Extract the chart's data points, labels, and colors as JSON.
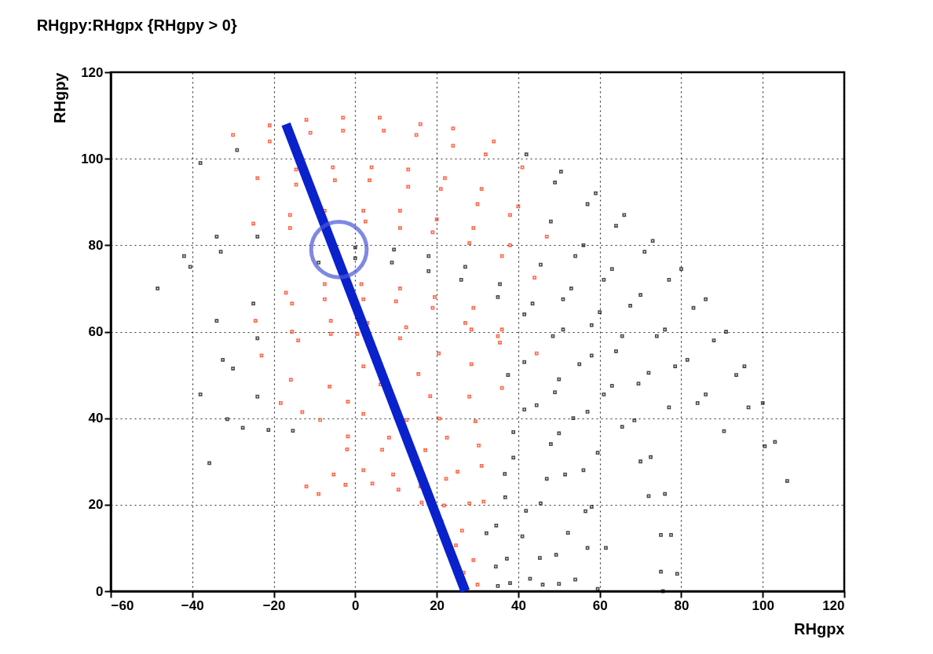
{
  "chart_data": {
    "type": "scatter",
    "title": "RHgpy:RHgpx {RHgpy > 0}",
    "xlabel": "RHgpx",
    "ylabel": "RHgpy",
    "xlim": [
      -60,
      120
    ],
    "ylim": [
      0,
      120
    ],
    "xticks": [
      -60,
      -40,
      -20,
      0,
      20,
      40,
      60,
      80,
      100,
      120
    ],
    "yticks": [
      0,
      20,
      40,
      60,
      80,
      100,
      120
    ],
    "grid": true,
    "marker": "square",
    "series": [
      {
        "color": "#ff2a00",
        "x": [
          -30,
          -21,
          -12,
          -3,
          6,
          16,
          24,
          34,
          32,
          41,
          -21,
          -11,
          -3,
          7,
          15,
          24,
          -24,
          -14.5,
          -14.5,
          -5,
          -5.5,
          4,
          3.5,
          13,
          13,
          22,
          21,
          30,
          31,
          40,
          -25,
          -16,
          -16,
          -7.5,
          2,
          2.5,
          11,
          11,
          20,
          19,
          28,
          29,
          38,
          38,
          47,
          36,
          44,
          -17,
          -7.5,
          -7.5,
          2,
          1.5,
          11,
          10,
          19,
          19.5,
          29,
          27,
          35,
          -24.5,
          -15.5,
          -15.5,
          -6,
          -6,
          0.5,
          3,
          12.5,
          11,
          20.5,
          28.5,
          35.5,
          -23,
          -14,
          28.5,
          36,
          36,
          44.5,
          -15.8,
          2,
          15.5,
          28,
          -18.3,
          -6.3,
          6.2,
          18.4,
          29.5,
          -13,
          -1.8,
          20.6,
          30.3,
          -8.6,
          2,
          12.6,
          22.5,
          31,
          -1.8,
          8.3,
          17.2,
          25.1,
          31.5,
          -2,
          6.6,
          22.3,
          28,
          -12,
          -5.3,
          2,
          9.3,
          16,
          21.8,
          26.2,
          29,
          30,
          -9,
          -2.4,
          4.2,
          10.6,
          16.3,
          21.2,
          24.7,
          26.6
        ],
        "values": [
          105.5,
          107.7,
          109,
          109.5,
          109.5,
          108,
          107,
          104,
          101,
          98,
          104,
          106,
          106.5,
          106.5,
          105.5,
          103,
          95.5,
          97.5,
          94,
          95,
          98,
          98,
          95,
          93.5,
          97.5,
          95.5,
          93,
          89.5,
          93,
          89,
          85,
          87,
          84,
          88,
          88,
          85.5,
          84,
          88,
          86,
          83,
          80.5,
          84,
          80,
          87,
          82,
          77.5,
          72.5,
          69,
          71,
          67.5,
          67.5,
          71,
          70,
          67,
          65.5,
          68,
          65.5,
          62,
          59,
          62.5,
          66.5,
          60,
          62.5,
          59.5,
          59.5,
          62,
          61,
          58.5,
          55,
          60.5,
          57.5,
          54.5,
          58,
          52.5,
          47,
          60.5,
          55,
          48.9,
          52,
          50.2,
          45,
          43.5,
          47.3,
          47.8,
          45.1,
          39.3,
          41.4,
          43.8,
          39.9,
          33.7,
          39.6,
          41,
          39.6,
          35.5,
          29,
          35.8,
          35.5,
          32.6,
          27.6,
          20.7,
          32.8,
          32.7,
          26,
          20.3,
          24.2,
          27,
          28,
          27,
          24.2,
          19.8,
          14,
          7.2,
          1.5,
          22.5,
          24.6,
          24.9,
          23.5,
          20.5,
          16.1,
          10.6,
          4.3
        ]
      },
      {
        "color": "#000000",
        "x": [
          42,
          50.5,
          -38,
          -29,
          49,
          57,
          59,
          66,
          48,
          56,
          64,
          71,
          73,
          80,
          -42,
          -34,
          -33,
          -24,
          -9,
          0,
          0,
          9.5,
          9,
          18,
          18,
          27,
          26,
          35,
          35.5,
          43.5,
          45.5,
          53,
          54,
          61,
          63,
          70,
          77,
          83,
          86,
          91,
          -48.5,
          -40.5,
          41.5,
          48.5,
          51,
          58,
          60,
          65.5,
          67.5,
          74,
          -34,
          -25,
          -32.5,
          -24,
          -38,
          -30,
          51,
          58,
          76,
          81.5,
          88,
          93.5,
          37.5,
          44.5,
          41.5,
          49,
          50,
          57,
          55,
          61,
          64,
          69.5,
          63,
          68.5,
          72,
          77,
          78.5,
          84,
          86,
          90.5,
          95.5,
          100,
          96.5,
          100.5,
          103,
          106,
          41.5,
          48,
          50,
          56,
          53.5,
          59.5,
          65.5,
          70,
          72.5,
          76,
          51.5,
          56.5,
          58,
          61.5,
          72,
          75,
          57,
          59.5,
          77.5,
          79,
          75,
          75.5,
          -31.4,
          -24,
          38.8,
          47,
          52.2,
          54,
          -35.8,
          -27.6,
          38.8,
          45.5,
          49.3,
          50,
          -21.3,
          36.7,
          41.9,
          45.3,
          46,
          -15.3,
          36.8,
          41,
          42.9,
          34.6,
          37.2,
          38,
          32.2,
          34.5,
          35
        ],
        "values": [
          101,
          97,
          99,
          102,
          94.5,
          89.5,
          92,
          87,
          85.5,
          80,
          84.5,
          78.5,
          81,
          74.5,
          77.5,
          82,
          78.5,
          82,
          76,
          77,
          79.5,
          79,
          76,
          74,
          77.5,
          75,
          72,
          68,
          71,
          66.5,
          75.5,
          70,
          77.5,
          72,
          74.5,
          68.5,
          72,
          65.5,
          67.5,
          60,
          70,
          75,
          64,
          59,
          67.5,
          61.5,
          64.5,
          59,
          66,
          59,
          62.5,
          66.5,
          53.5,
          58.5,
          45.5,
          51.5,
          60.5,
          54.5,
          60.5,
          53.5,
          58,
          50,
          50,
          43,
          53,
          46,
          49,
          41.5,
          52.5,
          45.5,
          55.5,
          48,
          47.5,
          39.5,
          50.5,
          42.5,
          52,
          43.5,
          45.5,
          37,
          52,
          43.5,
          42.5,
          33.5,
          34.5,
          25.5,
          42,
          34,
          36.5,
          28,
          40,
          32,
          38,
          30,
          31,
          22.5,
          27,
          18.5,
          19.5,
          10,
          22,
          13,
          10,
          0.5,
          13,
          4,
          4.5,
          0,
          39.8,
          45,
          36.8,
          26,
          13.5,
          2.7,
          29.6,
          37.8,
          30.9,
          20.3,
          8.4,
          1.7,
          37.3,
          27.1,
          18.6,
          7.7,
          1.5,
          37.1,
          21.7,
          12.7,
          2.9,
          15.2,
          7.5,
          1.9,
          13.4,
          5.7,
          1.2
        ]
      },
      {
        "type": "line",
        "marker": "none",
        "color": "#0a22cc",
        "x": [
          -17,
          27
        ],
        "values": [
          108,
          0
        ]
      },
      {
        "color": "#4a56d8",
        "marker": "circle",
        "x": [
          -4
        ],
        "values": [
          79
        ]
      }
    ]
  }
}
